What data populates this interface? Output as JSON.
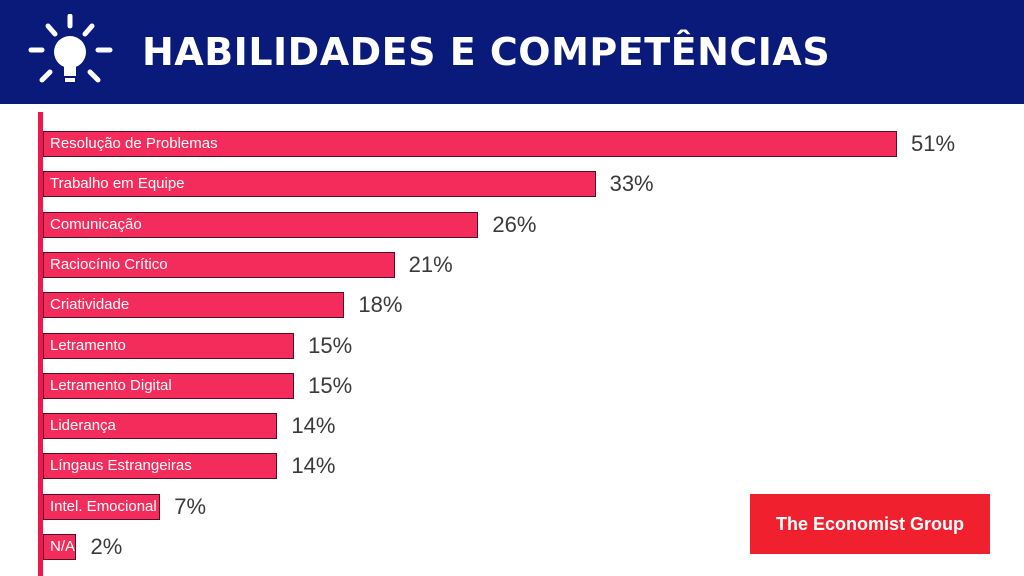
{
  "header": {
    "title": "HABILIDADES E COMPETÊNCIAS",
    "icon": "lightbulb-icon"
  },
  "colors": {
    "header_bg": "#0a1a7a",
    "bar": "#f42c5b",
    "logo_bg": "#f0202e"
  },
  "chart_data": {
    "type": "bar",
    "orientation": "horizontal",
    "categories": [
      "Resolução de Problemas",
      "Trabalho em Equipe",
      "Comunicação",
      "Raciocínio Crítico",
      "Criatividade",
      "Letramento",
      "Letramento Digital",
      "Liderança",
      "Língaus Estrangeiras",
      "Intel. Emocional",
      "N/A"
    ],
    "values": [
      51,
      33,
      26,
      21,
      18,
      15,
      15,
      14,
      14,
      7,
      2
    ],
    "value_labels": [
      "51%",
      "33%",
      "26%",
      "21%",
      "18%",
      "15%",
      "15%",
      "14%",
      "14%",
      "7%",
      "2%"
    ],
    "unit": "%",
    "grid": false
  },
  "logo": {
    "text": "The Economist Group"
  }
}
